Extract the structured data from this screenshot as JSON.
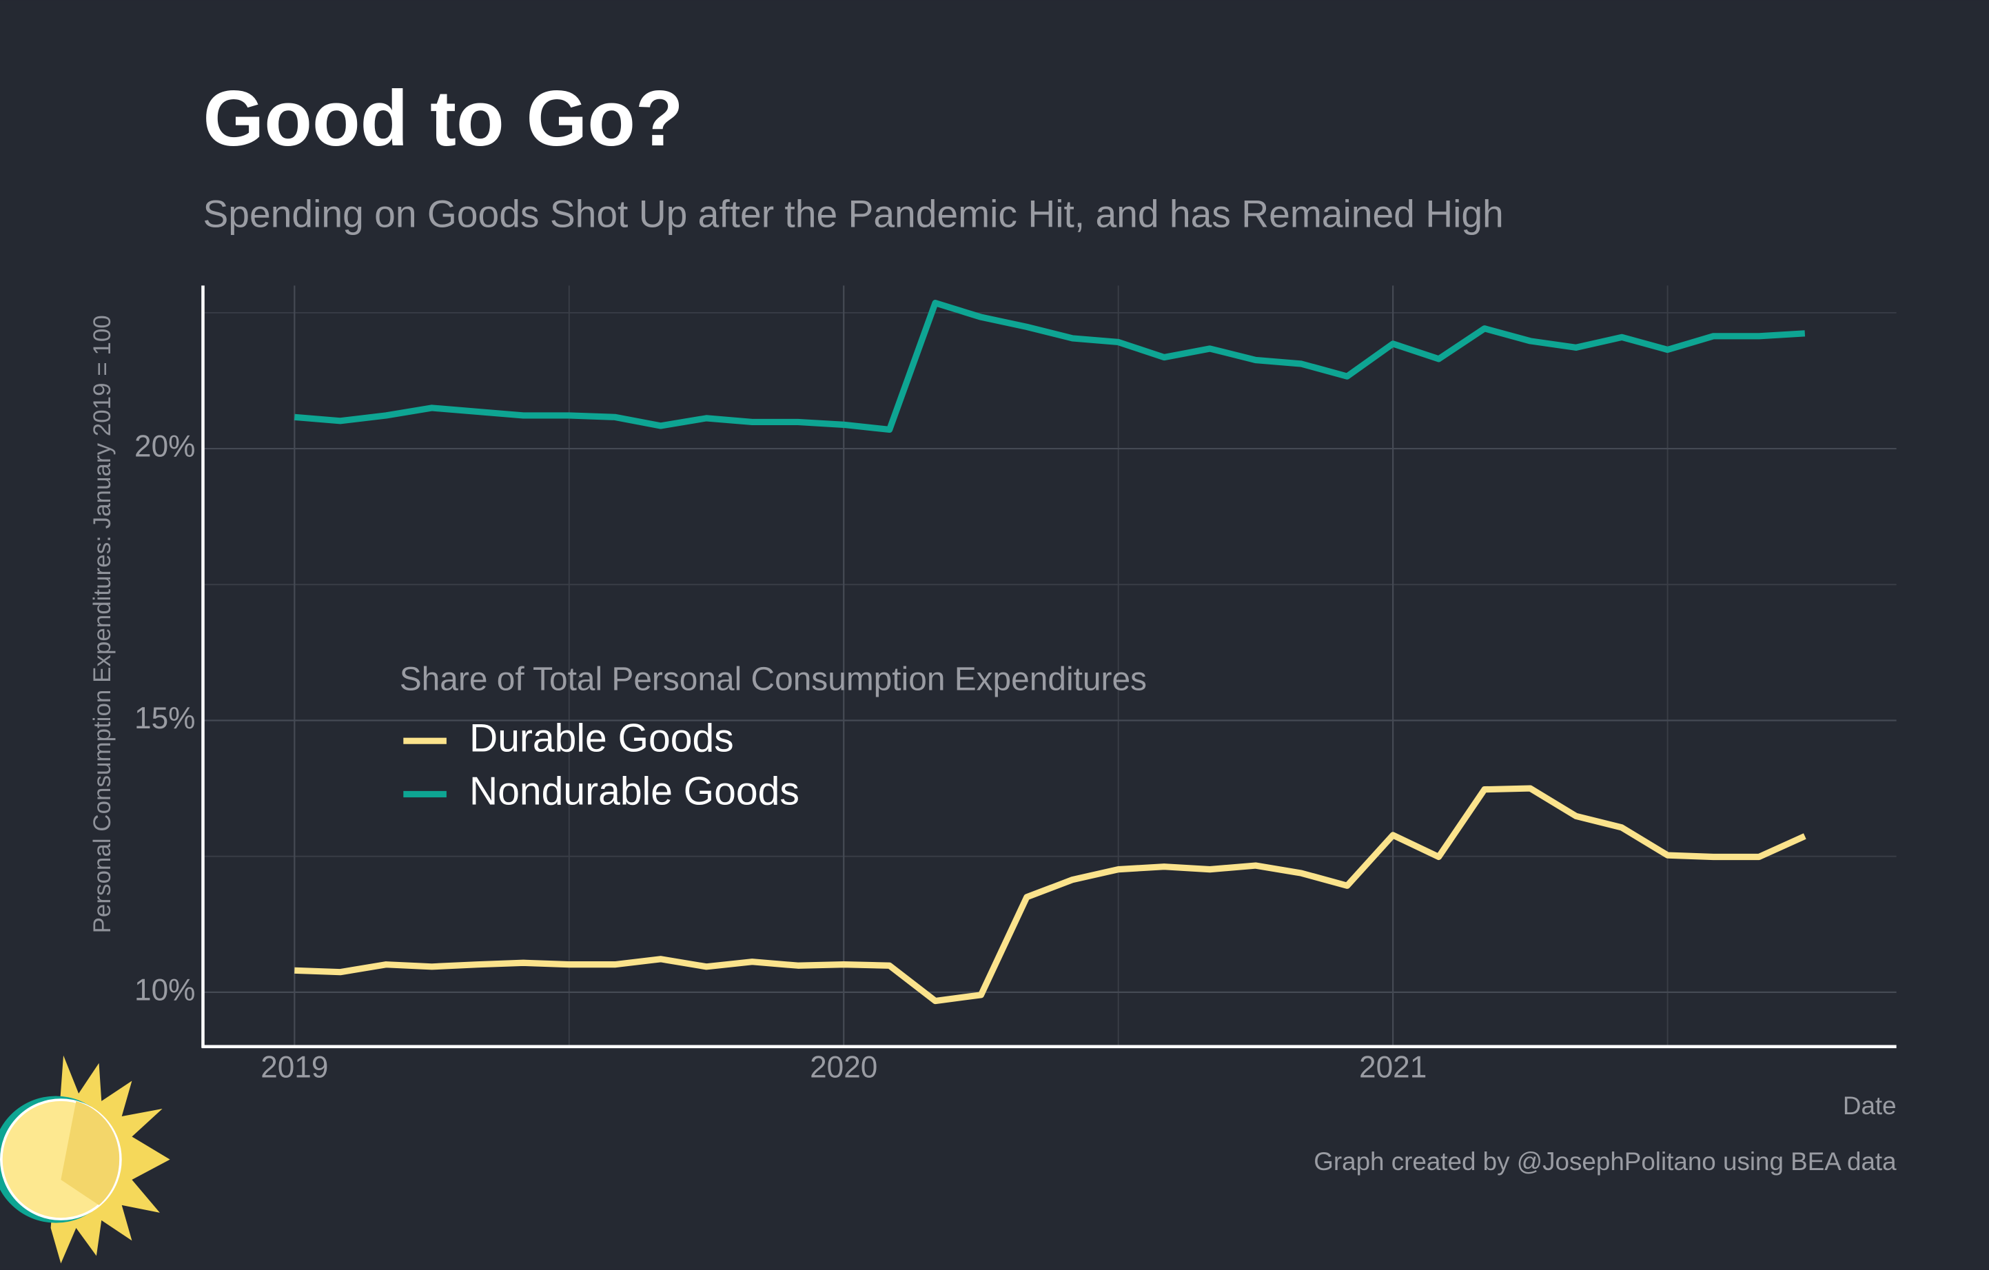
{
  "chart_data": {
    "type": "line",
    "title": "Good to Go?",
    "subtitle": "Spending on Goods Shot Up after the Pandemic Hit, and has Remained High",
    "y_label": "Personal Consumption Expenditures: January 2019 = 100",
    "x_label": "Date",
    "caption": "Graph created by @JosephPolitano using BEA data",
    "legend_title": "Share of Total Personal Consumption Expenditures",
    "legend_position": "center-left",
    "grid": true,
    "x": [
      "2019-01",
      "2019-02",
      "2019-03",
      "2019-04",
      "2019-05",
      "2019-06",
      "2019-07",
      "2019-08",
      "2019-09",
      "2019-10",
      "2019-11",
      "2019-12",
      "2020-01",
      "2020-02",
      "2020-03",
      "2020-04",
      "2020-05",
      "2020-06",
      "2020-07",
      "2020-08",
      "2020-09",
      "2020-10",
      "2020-11",
      "2020-12",
      "2021-01",
      "2021-02",
      "2021-03",
      "2021-04",
      "2021-05",
      "2021-06",
      "2021-07",
      "2021-08",
      "2021-09",
      "2021-10"
    ],
    "series": [
      {
        "name": "Durable Goods",
        "color": "#fbe38c",
        "values": [
          10.4,
          10.37,
          10.51,
          10.47,
          10.51,
          10.54,
          10.51,
          10.51,
          10.61,
          10.47,
          10.56,
          10.49,
          10.51,
          10.49,
          9.84,
          9.95,
          11.75,
          12.07,
          12.26,
          12.31,
          12.26,
          12.33,
          12.19,
          11.96,
          12.89,
          12.49,
          13.73,
          13.75,
          13.24,
          13.03,
          12.52,
          12.49,
          12.49,
          12.87
        ]
      },
      {
        "name": "Nondurable Goods",
        "color": "#0ea593",
        "values": [
          20.58,
          20.51,
          20.61,
          20.75,
          20.68,
          20.61,
          20.61,
          20.58,
          20.42,
          20.56,
          20.49,
          20.49,
          20.44,
          20.35,
          22.68,
          22.42,
          22.24,
          22.03,
          21.96,
          21.68,
          21.84,
          21.63,
          21.56,
          21.33,
          21.93,
          21.65,
          22.21,
          21.98,
          21.86,
          22.05,
          21.82,
          22.07,
          22.07,
          22.12
        ]
      }
    ],
    "xlim": [
      "2018-11",
      "2021-12"
    ],
    "xticks": [
      {
        "value": "2019-01",
        "label": "2019"
      },
      {
        "value": "2020-01",
        "label": "2020"
      },
      {
        "value": "2021-01",
        "label": "2021"
      }
    ],
    "minor_xticks": [
      "2019-07",
      "2020-07",
      "2021-07"
    ],
    "ylim": [
      9,
      23
    ],
    "yticks": [
      {
        "value": 10,
        "label": "10%"
      },
      {
        "value": 15,
        "label": "15%"
      },
      {
        "value": 20,
        "label": "20%"
      }
    ],
    "minor_yticks": [
      12.5,
      17.5,
      22.5
    ]
  }
}
